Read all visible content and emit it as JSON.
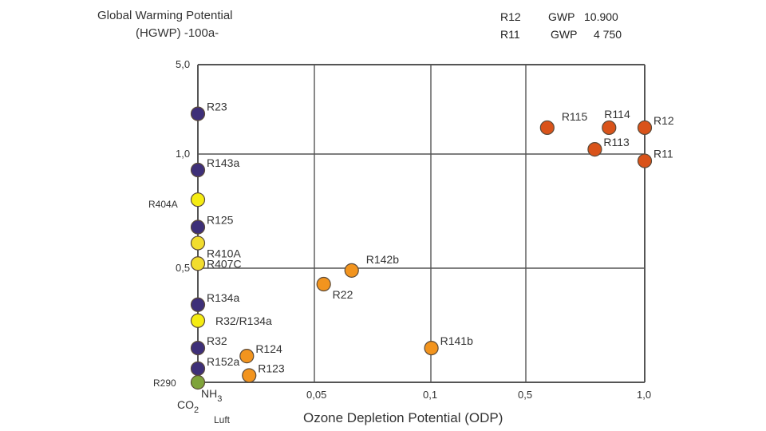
{
  "chart_data": {
    "type": "scatter",
    "title_line1": "Global Warming Potential",
    "title_line2": "(HGWP) -100a-",
    "xlabel": "Ozone Depletion Potential (ODP)",
    "ylabel": "Global Warming Potential (HGWP) -100a-",
    "xlim": [
      0,
      1.0
    ],
    "ylim": [
      0,
      5.0
    ],
    "scale": "piecewise",
    "grid": true,
    "x_ticks": [
      {
        "value": 0,
        "label": ""
      },
      {
        "value": 0.05,
        "label": "0,05"
      },
      {
        "value": 0.1,
        "label": "0,1"
      },
      {
        "value": 0.5,
        "label": "0,5"
      },
      {
        "value": 1.0,
        "label": "1,0"
      }
    ],
    "y_ticks": [
      {
        "value": 0,
        "label": ""
      },
      {
        "value": 0.5,
        "label": "0,5"
      },
      {
        "value": 1.0,
        "label": "1,0"
      },
      {
        "value": 5.0,
        "label": "5,0"
      }
    ],
    "annotations": [
      {
        "name": "R12",
        "gwp_label": "GWP",
        "gwp_value": "10.900"
      },
      {
        "name": "R11",
        "gwp_label": "GWP",
        "gwp_value": "4 750"
      }
    ],
    "extra_labels": [
      {
        "text": "NH",
        "sub": "3"
      },
      {
        "text": "CO",
        "sub": "2"
      },
      {
        "text": "Luft",
        "sub": ""
      }
    ],
    "colors": {
      "hfc": "#3e2f78",
      "blend": "#f2dd2e",
      "blend_bright": "#f5ec12",
      "hcfc": "#f2941e",
      "cfc": "#d9531a",
      "natural": "#7fa33a",
      "grid": "#555555"
    },
    "points": [
      {
        "label": "R23",
        "x": 0,
        "y": 2.8,
        "group": "hfc",
        "label_pos": "right-up"
      },
      {
        "label": "R143a",
        "x": 0,
        "y": 0.93,
        "group": "hfc",
        "label_pos": "right-up"
      },
      {
        "label": "R404A",
        "x": 0,
        "y": 0.8,
        "group": "blend_bright",
        "label_pos": "left-down"
      },
      {
        "label": "R125",
        "x": 0,
        "y": 0.68,
        "group": "hfc",
        "label_pos": "right-up"
      },
      {
        "label": "R410A",
        "x": 0,
        "y": 0.61,
        "group": "blend",
        "label_pos": "right-down"
      },
      {
        "label": "R407C",
        "x": 0,
        "y": 0.52,
        "group": "blend",
        "label_pos": "right"
      },
      {
        "label": "R134a",
        "x": 0,
        "y": 0.34,
        "group": "hfc",
        "label_pos": "right-up"
      },
      {
        "label": "R32/R134a",
        "x": 0,
        "y": 0.27,
        "group": "blend_bright",
        "label_pos": "right-far"
      },
      {
        "label": "R32",
        "x": 0,
        "y": 0.15,
        "group": "hfc",
        "label_pos": "right-up"
      },
      {
        "label": "R152a",
        "x": 0,
        "y": 0.06,
        "group": "hfc",
        "label_pos": "right-up"
      },
      {
        "label": "R290",
        "x": 0,
        "y": 0.0,
        "group": "natural",
        "label_pos": "left"
      },
      {
        "label": "R124",
        "x": 0.021,
        "y": 0.115,
        "group": "hcfc",
        "label_pos": "right-up"
      },
      {
        "label": "R123",
        "x": 0.022,
        "y": 0.03,
        "group": "hcfc",
        "label_pos": "right-up"
      },
      {
        "label": "R22",
        "x": 0.054,
        "y": 0.43,
        "group": "hcfc",
        "label_pos": "right-down"
      },
      {
        "label": "R142b",
        "x": 0.066,
        "y": 0.49,
        "group": "hcfc",
        "label_pos": "right-up-far"
      },
      {
        "label": "R141b",
        "x": 0.102,
        "y": 0.15,
        "group": "hcfc",
        "label_pos": "right-up"
      },
      {
        "label": "R115",
        "x": 0.59,
        "y": 2.18,
        "group": "cfc",
        "label_pos": "right-up-far"
      },
      {
        "label": "R114",
        "x": 0.85,
        "y": 2.18,
        "group": "cfc",
        "label_pos": "up"
      },
      {
        "label": "R12",
        "x": 1.0,
        "y": 2.18,
        "group": "cfc",
        "label_pos": "right-up"
      },
      {
        "label": "R113",
        "x": 0.79,
        "y": 1.21,
        "group": "cfc",
        "label_pos": "right-up"
      },
      {
        "label": "R11",
        "x": 1.0,
        "y": 0.97,
        "group": "cfc",
        "label_pos": "right-up"
      }
    ]
  }
}
